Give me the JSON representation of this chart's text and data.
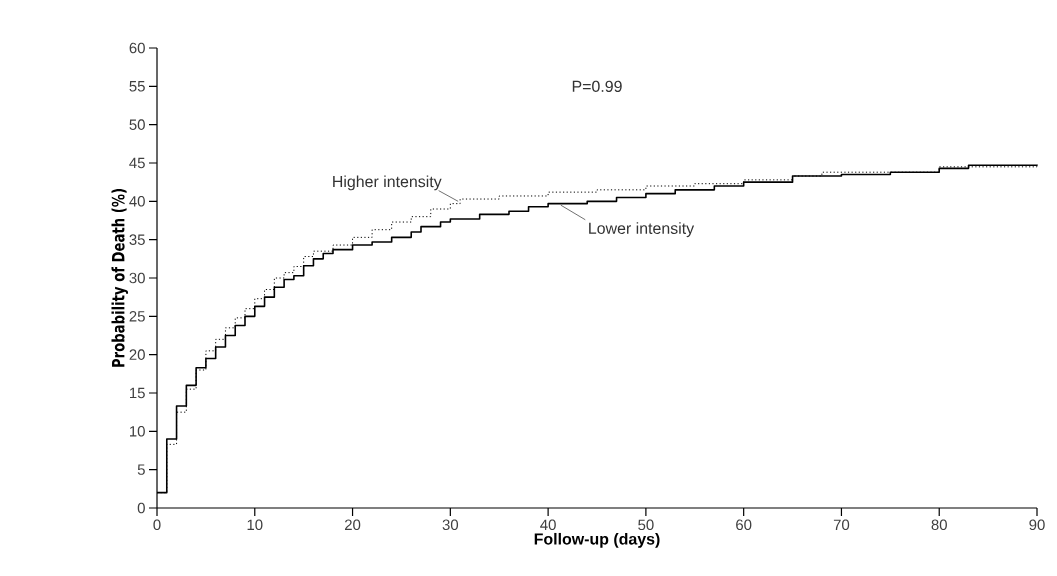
{
  "chart_data": {
    "type": "step",
    "xlabel": "Follow-up (days)",
    "ylabel": "Probability of Death (%)",
    "annotations": [
      "P=0.99"
    ],
    "xlim": [
      0,
      90
    ],
    "ylim": [
      0,
      60
    ],
    "xticks": [
      0,
      10,
      20,
      30,
      40,
      50,
      60,
      70,
      80,
      90
    ],
    "yticks": [
      0,
      5,
      10,
      15,
      20,
      25,
      30,
      35,
      40,
      45,
      50,
      55,
      60
    ],
    "grid": false,
    "legend": false,
    "series": [
      {
        "name": "Higher intensity",
        "color": "#000000",
        "line_style": "dotted",
        "x": [
          0,
          1,
          2,
          3,
          4,
          5,
          6,
          7,
          8,
          9,
          10,
          11,
          12,
          13,
          14,
          15,
          16,
          18,
          20,
          22,
          24,
          26,
          28,
          30,
          31,
          35,
          40,
          45,
          50,
          55,
          60,
          65,
          68,
          75,
          80,
          90
        ],
        "values": [
          2,
          8.3,
          12.5,
          15.5,
          18,
          20.5,
          22,
          23.5,
          24.8,
          26,
          27.3,
          28.5,
          30,
          30.7,
          31.5,
          32.8,
          33.5,
          34.3,
          35.3,
          36.3,
          37.3,
          38,
          39,
          39.7,
          40.3,
          40.7,
          41.2,
          41.5,
          42,
          42.3,
          42.8,
          43.3,
          43.8,
          43.8,
          44.5,
          44.8
        ]
      },
      {
        "name": "Lower intensity",
        "color": "#000000",
        "line_style": "solid",
        "x": [
          0,
          1,
          2,
          3,
          4,
          5,
          6,
          7,
          8,
          9,
          10,
          11,
          12,
          13,
          14,
          15,
          16,
          17,
          18,
          20,
          22,
          24,
          26,
          27,
          29,
          30,
          33,
          36,
          38,
          40,
          44,
          47,
          50,
          53,
          57,
          60,
          65,
          70,
          75,
          80,
          83,
          90
        ],
        "values": [
          2,
          9,
          13.3,
          16,
          18.3,
          19.5,
          21,
          22.5,
          23.8,
          25,
          26.3,
          27.5,
          28.8,
          29.8,
          30.3,
          31.6,
          32.5,
          33.2,
          33.7,
          34.3,
          34.7,
          35.3,
          36,
          36.7,
          37.3,
          37.7,
          38.3,
          38.7,
          39.3,
          39.7,
          40,
          40.5,
          41,
          41.5,
          42,
          42.5,
          43.3,
          43.5,
          43.8,
          44.3,
          44.7,
          44.8
        ]
      }
    ]
  }
}
